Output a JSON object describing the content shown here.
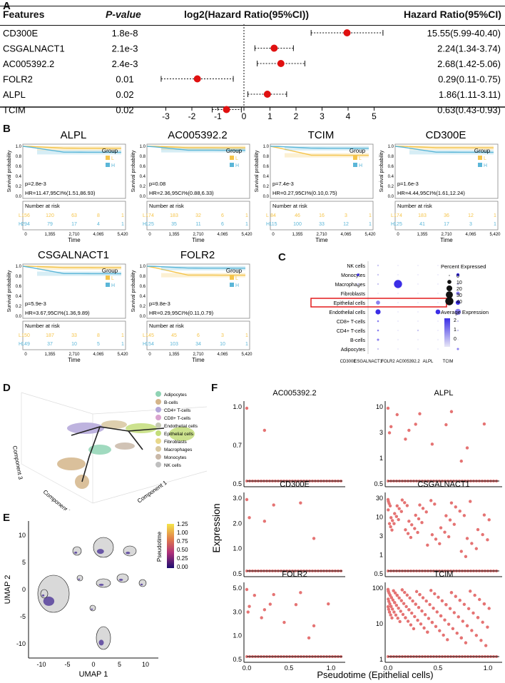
{
  "panels": {
    "a": "A",
    "b": "B",
    "c": "C",
    "d": "D",
    "e": "E",
    "f": "F"
  },
  "forest": {
    "headers": {
      "features": "Features",
      "pvalue": "P-value",
      "plot": "log2(Hazard Ratio(95%CI))",
      "hr": "Hazard Ratio(95%CI)"
    },
    "rows": [
      {
        "feature": "CD300E",
        "p": "1.8e-8",
        "est": 3.96,
        "lo": 2.58,
        "hi": 5.34,
        "hr": "15.55(5.99-40.40)"
      },
      {
        "feature": "CSGALNACT1",
        "p": "2.1e-3",
        "est": 1.16,
        "lo": 0.42,
        "hi": 1.9,
        "hr": "2.24(1.34-3.74)"
      },
      {
        "feature": "AC005392.2",
        "p": "2.4e-3",
        "est": 1.42,
        "lo": 0.51,
        "hi": 2.34,
        "hr": "2.68(1.42-5.06)"
      },
      {
        "feature": "FOLR2",
        "p": "0.01",
        "est": -1.79,
        "lo": -3.18,
        "hi": -0.41,
        "hr": "0.29(0.11-0.75)"
      },
      {
        "feature": "ALPL",
        "p": "0.02",
        "est": 0.9,
        "lo": 0.15,
        "hi": 1.64,
        "hr": "1.86(1.11-3.11)"
      },
      {
        "feature": "TCIM",
        "p": "0.02",
        "est": -0.67,
        "lo": -1.22,
        "hi": -0.1,
        "hr": "0.63(0.43-0.93)"
      }
    ],
    "ticks": [
      "-3",
      "-2",
      "-1",
      "0",
      "1",
      "2",
      "3",
      "4",
      "5"
    ],
    "tickVals": [
      -3,
      -2,
      -1,
      0,
      1,
      2,
      3,
      4,
      5
    ],
    "pointColor": "#e01010"
  },
  "km": {
    "ylabel": "Survival probability",
    "xlabel": "Time",
    "risk_title": "Number at risk",
    "group_title": "Group",
    "legend_l": "L",
    "legend_h": "H",
    "yticks": [
      "1.0",
      "0.8",
      "0.6",
      "0.4",
      "0.2",
      "0.0"
    ],
    "xticks": [
      "0",
      "1,355",
      "2,710",
      "4,065",
      "5,420"
    ],
    "colorL": "#f5c44a",
    "colorH": "#5bb6d8",
    "plots": [
      {
        "gene": "ALPL",
        "p": "p=2.8e-3",
        "hr": "HR=11.47,95CI%(1.51,86.93)",
        "riskL": [
          "156",
          "120",
          "63",
          "8",
          "1"
        ],
        "riskH": [
          "294",
          "79",
          "17",
          "4",
          "1"
        ],
        "dropH": 0.88,
        "dropL": 0.96
      },
      {
        "gene": "AC005392.2",
        "p": "p=0.08",
        "hr": "HR=2.36,95CI%(0.88,6.33)",
        "riskL": [
          "174",
          "183",
          "32",
          "6",
          "1"
        ],
        "riskH": [
          "125",
          "35",
          "11",
          "6",
          "1"
        ],
        "dropH": 0.92,
        "dropL": 0.97
      },
      {
        "gene": "TCIM",
        "p": "p=7.4e-3",
        "hr": "HR=0.27,95CI%(0.10,0.75)",
        "riskL": [
          "84",
          "46",
          "16",
          "3",
          "1"
        ],
        "riskH": [
          "115",
          "100",
          "33",
          "12",
          "1"
        ],
        "dropH": 0.96,
        "dropL": 0.82
      },
      {
        "gene": "CD300E",
        "p": "p=1.6e-3",
        "hr": "HR=4.44,95CI%(1.61,12.24)",
        "riskL": [
          "174",
          "183",
          "36",
          "12",
          "1"
        ],
        "riskH": [
          "125",
          "41",
          "17",
          "3",
          "1"
        ],
        "dropH": 0.88,
        "dropL": 0.97
      },
      {
        "gene": "CSGALNACT1",
        "p": "p=5.9e-3",
        "hr": "HR=3.67,95CI%(1.36,9.89)",
        "riskL": [
          "150",
          "187",
          "33",
          "8",
          "1"
        ],
        "riskH": [
          "149",
          "37",
          "10",
          "5",
          "1"
        ],
        "dropH": 0.85,
        "dropL": 0.97
      },
      {
        "gene": "FOLR2",
        "p": "p=9.8e-3",
        "hr": "HR=0.29,95CI%(0.11,0.79)",
        "riskL": [
          "145",
          "45",
          "6",
          "3",
          "1"
        ],
        "riskH": [
          "154",
          "103",
          "34",
          "10",
          "1"
        ],
        "dropH": 0.96,
        "dropL": 0.82
      }
    ]
  },
  "dotplot": {
    "cells": [
      "NK cells",
      "Monocytes",
      "Macrophages",
      "Fibroblasts",
      "Epithelial cells",
      "Endothelial cells",
      "CD8+ T-cells",
      "CD4+ T-cells",
      "B-cells",
      "Adipocytes"
    ],
    "genes": [
      "CD300E",
      "CSGALNACT1",
      "FOLR2",
      "AC005392.2",
      "ALPL",
      "TCIM"
    ],
    "size": [
      [
        0,
        1,
        0,
        0,
        0,
        0
      ],
      [
        4,
        1,
        0,
        0,
        0,
        6
      ],
      [
        2,
        1,
        40,
        0,
        0,
        3
      ],
      [
        0,
        0,
        0,
        0,
        0,
        8
      ],
      [
        0,
        10,
        0,
        0,
        0,
        12
      ],
      [
        0,
        16,
        0,
        0,
        14,
        22
      ],
      [
        0,
        2,
        0,
        0,
        0,
        1
      ],
      [
        0,
        2,
        0,
        1,
        0,
        1
      ],
      [
        0,
        3,
        0,
        0,
        0,
        0
      ],
      [
        0,
        1,
        0,
        0,
        0,
        3
      ]
    ],
    "expr": [
      [
        0,
        0,
        0,
        0,
        0,
        0
      ],
      [
        2,
        0,
        0,
        0,
        0,
        2
      ],
      [
        0,
        0,
        2.4,
        0,
        0,
        0
      ],
      [
        0,
        0,
        0,
        0,
        0,
        1
      ],
      [
        0,
        1,
        0,
        0,
        0,
        2
      ],
      [
        0,
        2.2,
        0,
        0,
        2.4,
        1.5
      ],
      [
        0,
        1,
        0,
        0,
        0,
        0
      ],
      [
        0,
        1,
        0,
        0,
        0,
        0
      ],
      [
        0,
        1,
        0,
        0,
        0,
        0
      ],
      [
        0,
        0,
        0,
        0,
        0,
        1
      ]
    ],
    "highlight": "Epithelial cells",
    "size_legend_title": "Percent Expressed",
    "size_legend": [
      "0",
      "10",
      "20",
      "30",
      "40"
    ],
    "color_legend_title": "Average Expression",
    "color_legend": [
      "2",
      "1",
      "0"
    ]
  },
  "traj3d": {
    "legend": [
      "Adipocytes",
      "B-cells",
      "CD4+ T-cells",
      "CD8+ T-cells",
      "Endothelial cells",
      "Epithelial cells",
      "Fibroblasts",
      "Macrophages",
      "Monocytes",
      "NK cells"
    ],
    "colors": [
      "#8fd3b4",
      "#d4b58a",
      "#b3a6d9",
      "#d9a3cf",
      "#c5c9b3",
      "#c3dd7a",
      "#e8d88a",
      "#d8c7a0",
      "#c9b8a8",
      "#bfbfbf"
    ],
    "axis1": "Component 1",
    "axis2": "Component 2",
    "axis3": "Component 3"
  },
  "umap": {
    "xlabel": "UMAP 1",
    "ylabel": "UMAP 2",
    "xticks": [
      "-10",
      "-5",
      "0",
      "5",
      "10"
    ],
    "yticks": [
      "10",
      "5",
      "0",
      "-5",
      "-10"
    ],
    "legend_title": "Pseudotime",
    "legend": [
      "1.25",
      "1.00",
      "0.75",
      "0.50",
      "0.25",
      "0.00"
    ]
  },
  "scatter": {
    "ylabel": "Expression",
    "xlabel": "Pseudotime (Epithelial cells)",
    "xticks": [
      "0.0",
      "0.5",
      "1.0"
    ],
    "dotColor": "#e57373",
    "plots": [
      {
        "gene": "AC005392.2",
        "yticks": [
          "1.0",
          "0.7",
          "0.5"
        ]
      },
      {
        "gene": "ALPL",
        "yticks": [
          "10",
          "3",
          "1",
          "0.5"
        ]
      },
      {
        "gene": "CD300E",
        "yticks": [
          "3.0",
          "2.0",
          "1.0",
          "0.5"
        ]
      },
      {
        "gene": "CSGALNACT1",
        "yticks": [
          "30",
          "10",
          "3",
          "1",
          "0.5"
        ]
      },
      {
        "gene": "FOLR2",
        "yticks": [
          "5.0",
          "3.0",
          "1.0",
          "0.5"
        ]
      },
      {
        "gene": "TCIM",
        "yticks": [
          "100",
          "10",
          "1"
        ]
      }
    ]
  }
}
